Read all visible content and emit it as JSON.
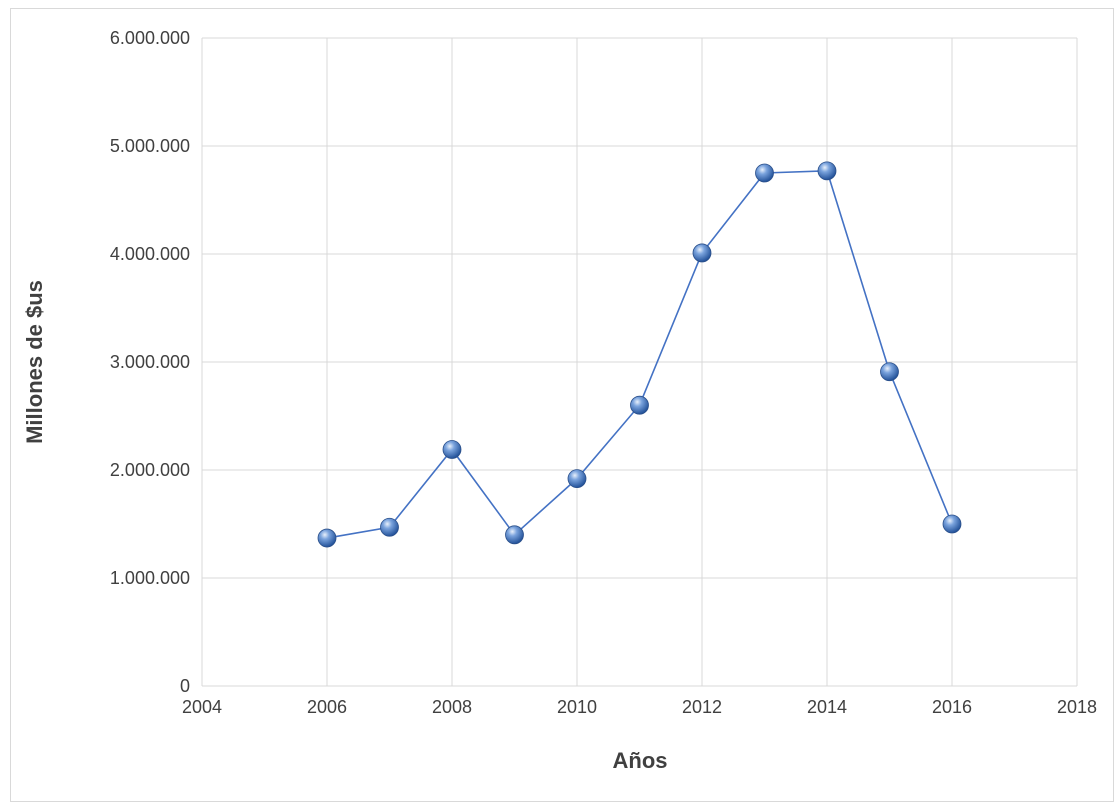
{
  "chart_data": {
    "type": "scatter",
    "title": "",
    "xlabel": "Años",
    "ylabel": "Millones de $us",
    "xlim": [
      2004,
      2018
    ],
    "ylim": [
      0,
      6000000
    ],
    "xticks": [
      2004,
      2006,
      2008,
      2010,
      2012,
      2014,
      2016,
      2018
    ],
    "yticks": [
      0,
      1000000,
      2000000,
      3000000,
      4000000,
      5000000,
      6000000
    ],
    "xtick_labels": [
      "2004",
      "2006",
      "2008",
      "2010",
      "2012",
      "2014",
      "2016",
      "2018"
    ],
    "ytick_labels": [
      "0",
      "1.000.000",
      "2.000.000",
      "3.000.000",
      "4.000.000",
      "5.000.000",
      "6.000.000"
    ],
    "grid": true,
    "legend": "none",
    "series": [
      {
        "color": "#4472c4",
        "marker": "sphere",
        "connected": true,
        "x": [
          2006,
          2007,
          2008,
          2009,
          2010,
          2011,
          2012,
          2013,
          2014,
          2015,
          2016
        ],
        "y": [
          1370000,
          1470000,
          2190000,
          1400000,
          1920000,
          2600000,
          4010000,
          4750000,
          4770000,
          2910000,
          1500000
        ]
      }
    ]
  }
}
